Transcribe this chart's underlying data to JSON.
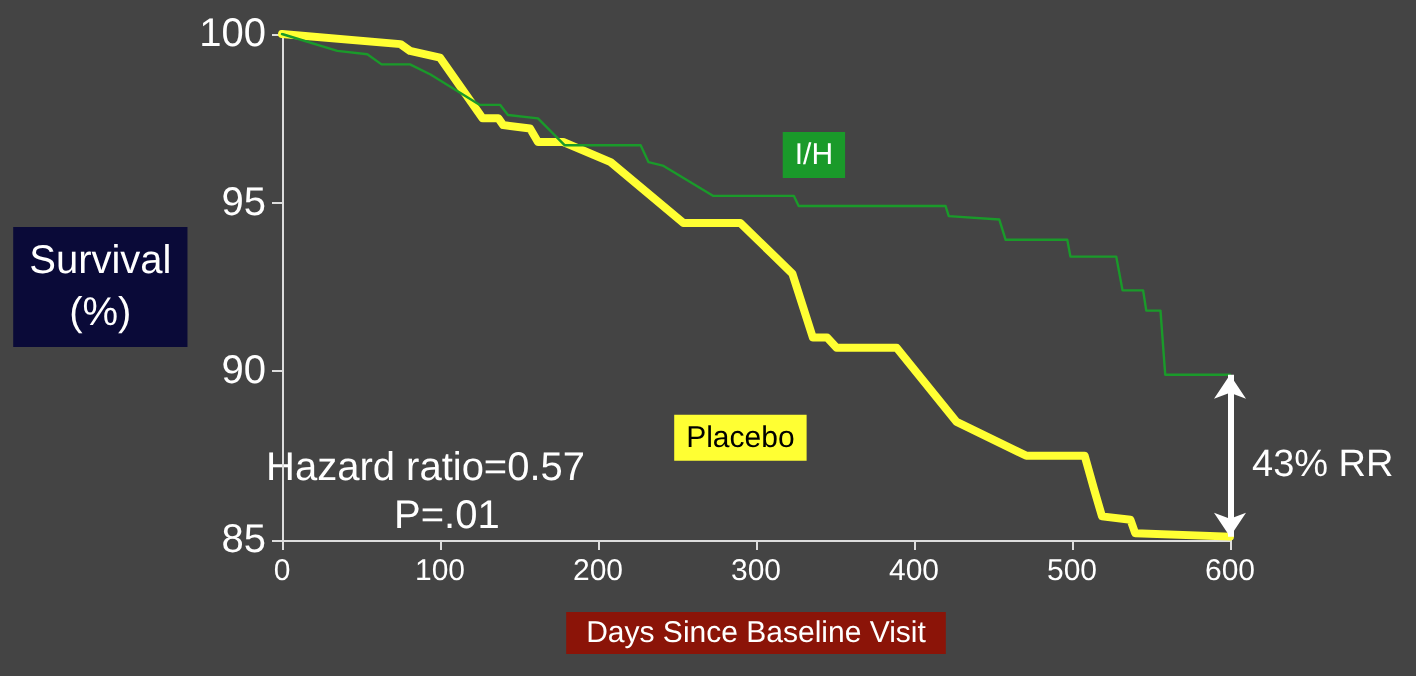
{
  "chart_data": {
    "type": "line",
    "xlabel": "Days Since Baseline Visit",
    "ylabel": "Survival\n(%)",
    "xlim": [
      0,
      600
    ],
    "xticks": [
      0,
      100,
      200,
      300,
      400,
      500,
      600
    ],
    "ylim": [
      85,
      100
    ],
    "yticks": [
      85,
      90,
      95,
      100
    ],
    "grid": false,
    "legend": false,
    "marker": "none",
    "line_style": "solid",
    "series": [
      {
        "name": "I/H",
        "color": "#1a9a2a",
        "x": [
          0,
          35,
          54,
          63,
          81,
          94,
          125,
          138,
          143,
          162,
          179,
          227,
          232,
          241,
          273,
          324,
          327,
          420,
          422,
          454,
          458,
          497,
          499,
          528,
          532,
          545,
          547,
          556,
          559,
          600
        ],
        "values": [
          100,
          99.5,
          99.4,
          99.1,
          99.1,
          98.8,
          97.9,
          97.9,
          97.6,
          97.5,
          96.7,
          96.7,
          96.2,
          96.1,
          95.2,
          95.2,
          94.9,
          94.9,
          94.6,
          94.5,
          93.9,
          93.9,
          93.4,
          93.4,
          92.4,
          92.4,
          91.8,
          91.8,
          89.9,
          89.9
        ]
      },
      {
        "name": "Placebo",
        "color": "#ffff33",
        "x": [
          0,
          75,
          81,
          100,
          127,
          137,
          140,
          157,
          162,
          178,
          208,
          254,
          290,
          323,
          336,
          345,
          351,
          389,
          427,
          471,
          508,
          514,
          519,
          537,
          540,
          600
        ],
        "values": [
          100,
          99.7,
          99.5,
          99.3,
          97.5,
          97.5,
          97.3,
          97.2,
          96.8,
          96.8,
          96.2,
          94.4,
          94.4,
          92.9,
          91.0,
          91.0,
          90.7,
          90.7,
          88.5,
          87.5,
          87.5,
          86.5,
          85.7,
          85.6,
          85.2,
          85.1
        ]
      }
    ],
    "annotations": [
      "Hazard ratio=0.57",
      "P=.01",
      "43% RR"
    ]
  }
}
